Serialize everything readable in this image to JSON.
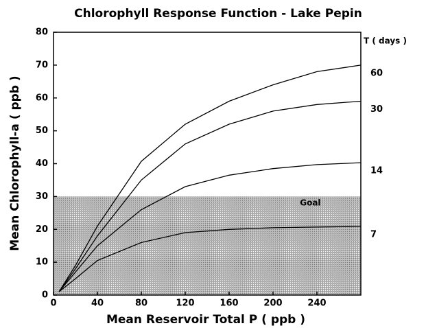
{
  "chart_data": {
    "type": "line",
    "title": "Chlorophyll Response Function - Lake Pepin",
    "x_label": "Mean Reservoir Total P ( ppb )",
    "y_label": "Mean Chlorophyll-a ( ppb )",
    "legend_title": "T ( days )",
    "x": [
      5,
      20,
      40,
      80,
      120,
      160,
      200,
      240,
      280
    ],
    "series": [
      {
        "name": "60",
        "color": "#000000",
        "values": [
          1,
          9,
          21,
          40.7,
          52,
          59,
          64,
          68,
          70
        ]
      },
      {
        "name": "30",
        "color": "#000000",
        "values": [
          1,
          8,
          18,
          35,
          46,
          52,
          56,
          58,
          59
        ]
      },
      {
        "name": "14",
        "color": "#000000",
        "values": [
          1,
          7,
          15,
          26,
          33,
          36.5,
          38.5,
          39.7,
          40.3
        ]
      },
      {
        "name": "7",
        "color": "#000000",
        "values": [
          1,
          5,
          10.5,
          16,
          19,
          20,
          20.5,
          20.7,
          20.9
        ]
      }
    ],
    "goal_range": [
      0,
      30
    ],
    "annotation": {
      "text": "Goal",
      "x": 234,
      "y": 28
    },
    "xlim": [
      0,
      280
    ],
    "xticks": [
      0,
      40,
      80,
      120,
      160,
      200,
      240
    ],
    "ylim": [
      0,
      80
    ],
    "yticks": [
      0,
      10,
      20,
      30,
      40,
      50,
      60,
      70,
      80
    ]
  }
}
